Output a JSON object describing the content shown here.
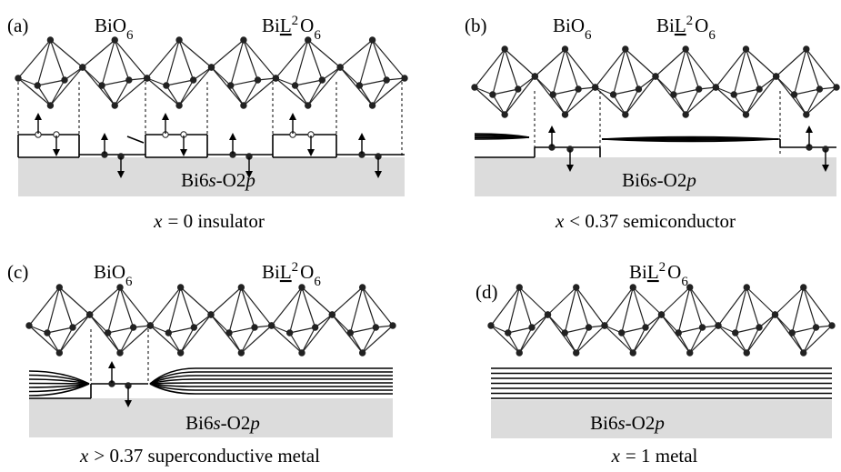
{
  "panels": [
    {
      "label": "(a)",
      "bio6": {
        "main": "BiO",
        "sub": "6"
      },
      "bil2o6": {
        "main": "Bi",
        "ligand": "L",
        "sup": "2",
        "tail": "O",
        "sub": "6"
      },
      "band": {
        "main": "Bi6",
        "orbital1": "s",
        "mid": "-O2",
        "orbital2": "p"
      },
      "caption": {
        "variable": "x",
        "text": "= 0 insulator"
      }
    },
    {
      "label": "(b)",
      "bio6": {
        "main": "BiO",
        "sub": "6"
      },
      "bil2o6": {
        "main": "Bi",
        "ligand": "L",
        "sup": "2",
        "tail": "O",
        "sub": "6"
      },
      "band": {
        "main": "Bi6",
        "orbital1": "s",
        "mid": "-O2",
        "orbital2": "p"
      },
      "caption": {
        "variable": "x",
        "text": "< 0.37 semiconductor"
      }
    },
    {
      "label": "(c)",
      "bio6": {
        "main": "BiO",
        "sub": "6"
      },
      "bil2o6": {
        "main": "Bi",
        "ligand": "L",
        "sup": "2",
        "tail": "O",
        "sub": "6"
      },
      "band": {
        "main": "Bi6",
        "orbital1": "s",
        "mid": "-O2",
        "orbital2": "p"
      },
      "caption": {
        "variable": "x",
        "text": "> 0.37 superconductive metal"
      }
    },
    {
      "label": "(d)",
      "bil2o6": {
        "main": "Bi",
        "ligand": "L",
        "sup": "2",
        "tail": "O",
        "sub": "6"
      },
      "band": {
        "main": "Bi6",
        "orbital1": "s",
        "mid": "-O2",
        "orbital2": "p"
      },
      "caption": {
        "variable": "x",
        "text": "= 1 metal"
      }
    }
  ]
}
